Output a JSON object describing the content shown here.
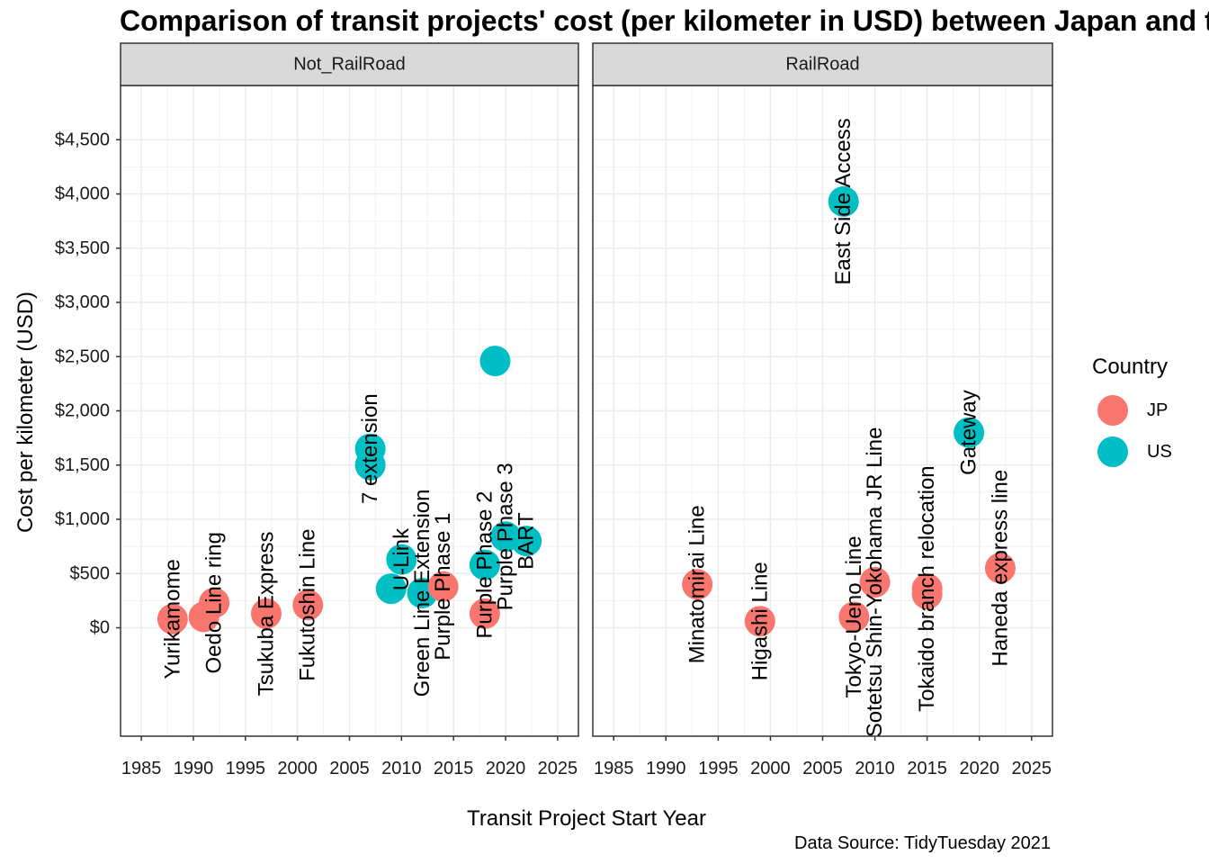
{
  "chart_data": {
    "type": "scatter",
    "title": "Comparison of transit projects' cost (per kilometer in USD) between Japan and the US",
    "xlabel": "Transit Project Start Year",
    "ylabel": "Cost per kilometer (USD)",
    "caption": "Data Source: TidyTuesday 2021",
    "xlim": [
      1983,
      2027
    ],
    "ylim": [
      -1000,
      5000
    ],
    "x_ticks": [
      1985,
      1990,
      1995,
      2000,
      2005,
      2010,
      2015,
      2020,
      2025
    ],
    "y_ticks": [
      0,
      500,
      1000,
      1500,
      2000,
      2500,
      3000,
      3500,
      4000,
      4500
    ],
    "y_tick_labels": [
      "$0",
      "$500",
      "$1,000",
      "$1,500",
      "$2,000",
      "$2,500",
      "$3,000",
      "$3,500",
      "$4,000",
      "$4,500"
    ],
    "grid": true,
    "legend": {
      "title": "Country",
      "position": "right",
      "entries": [
        {
          "name": "JP",
          "color": "#F8766D"
        },
        {
          "name": "US",
          "color": "#00BFC4"
        }
      ]
    },
    "panels": [
      {
        "name": "Not_RailRoad",
        "points": [
          {
            "x": 1988,
            "y": 80,
            "country": "JP",
            "label": "Yurikamome"
          },
          {
            "x": 1991,
            "y": 100,
            "country": "JP",
            "label": ""
          },
          {
            "x": 1992,
            "y": 230,
            "country": "JP",
            "label": "Oedo Line ring"
          },
          {
            "x": 1997,
            "y": 130,
            "country": "JP",
            "label": "Tsukuba Express"
          },
          {
            "x": 2001,
            "y": 210,
            "country": "JP",
            "label": "Fukutoshin Line"
          },
          {
            "x": 2007,
            "y": 1650,
            "country": "US",
            "label": "7 extension"
          },
          {
            "x": 2007,
            "y": 1500,
            "country": "US",
            "label": ""
          },
          {
            "x": 2009,
            "y": 360,
            "country": "US",
            "label": ""
          },
          {
            "x": 2010,
            "y": 630,
            "country": "US",
            "label": "U-Link"
          },
          {
            "x": 2012,
            "y": 320,
            "country": "US",
            "label": "Green Line Extension"
          },
          {
            "x": 2014,
            "y": 380,
            "country": "JP",
            "label": "Purple Phase 1"
          },
          {
            "x": 2018,
            "y": 580,
            "country": "US",
            "label": "Purple Phase 2"
          },
          {
            "x": 2018,
            "y": 130,
            "country": "JP",
            "label": ""
          },
          {
            "x": 2019,
            "y": 2460,
            "country": "US",
            "label": ""
          },
          {
            "x": 2020,
            "y": 840,
            "country": "US",
            "label": "Purple Phase 3"
          },
          {
            "x": 2022,
            "y": 800,
            "country": "US",
            "label": "BART"
          }
        ]
      },
      {
        "name": "RailRoad",
        "points": [
          {
            "x": 1993,
            "y": 400,
            "country": "JP",
            "label": "Minatomirai Line"
          },
          {
            "x": 1999,
            "y": 60,
            "country": "JP",
            "label": "Higashi Line"
          },
          {
            "x": 2007,
            "y": 3930,
            "country": "US",
            "label": "East Side Access"
          },
          {
            "x": 2008,
            "y": 100,
            "country": "JP",
            "label": "Tokyo-Ueno Line"
          },
          {
            "x": 2010,
            "y": 420,
            "country": "JP",
            "label": "Sotetsu Shin-Yokohama JR Line"
          },
          {
            "x": 2015,
            "y": 360,
            "country": "JP",
            "label": "Tokaido branch relocation"
          },
          {
            "x": 2015,
            "y": 310,
            "country": "JP",
            "label": ""
          },
          {
            "x": 2019,
            "y": 1800,
            "country": "US",
            "label": "Gateway"
          },
          {
            "x": 2022,
            "y": 550,
            "country": "JP",
            "label": "Haneda express line"
          }
        ]
      }
    ]
  }
}
